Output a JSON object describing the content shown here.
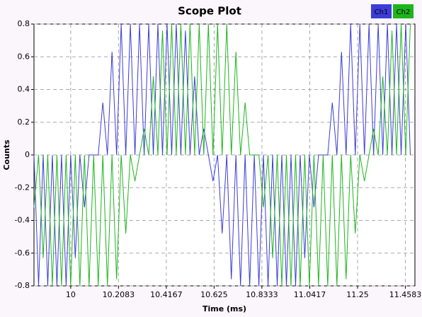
{
  "chart_data": {
    "type": "line",
    "title": "Scope Plot",
    "x_label": "Time (ms)",
    "y_label": "Counts",
    "x": [
      9.84,
      9.86,
      9.88,
      9.9,
      9.92,
      9.94,
      9.96,
      9.98,
      10,
      10.02,
      10.04,
      10.06,
      10.08,
      10.1,
      10.12,
      10.14,
      10.16,
      10.18,
      10.2,
      10.22,
      10.24,
      10.26,
      10.28,
      10.3,
      10.32,
      10.34,
      10.36,
      10.38,
      10.4,
      10.42,
      10.44,
      10.46,
      10.48,
      10.5,
      10.52,
      10.54,
      10.56,
      10.58,
      10.6,
      10.62,
      10.64,
      10.66,
      10.68,
      10.7,
      10.72,
      10.74,
      10.76,
      10.78,
      10.8,
      10.82,
      10.84,
      10.86,
      10.88,
      10.9,
      10.92,
      10.94,
      10.96,
      10.98,
      11,
      11.02,
      11.04,
      11.06,
      11.08,
      11.1,
      11.12,
      11.14,
      11.16,
      11.18,
      11.2,
      11.22,
      11.24,
      11.26,
      11.28,
      11.3,
      11.32,
      11.34,
      11.36,
      11.38,
      11.4,
      11.42,
      11.44,
      11.46,
      11.48
    ],
    "series": [
      {
        "name": "Ch1",
        "color": "#3c3cd8",
        "values": [
          0,
          -0.8,
          0,
          -0.8,
          0,
          -0.8,
          0,
          -0.8,
          0,
          -0.63,
          0,
          -0.32,
          0,
          0,
          0,
          0.32,
          0,
          0.63,
          0,
          0.8,
          0,
          0.8,
          0,
          0.8,
          0,
          0.8,
          0,
          0.8,
          0,
          0.8,
          0,
          0.8,
          0,
          0.76,
          0,
          0.48,
          0,
          0.16,
          0,
          -0.16,
          0,
          -0.48,
          0,
          -0.76,
          0,
          -0.8,
          0,
          -0.8,
          0,
          -0.8,
          0,
          -0.8,
          0,
          -0.8,
          0,
          -0.8,
          0,
          -0.8,
          0,
          -0.63,
          0,
          -0.32,
          0,
          0,
          0,
          0.32,
          0,
          0.63,
          0,
          0.8,
          0,
          0.8,
          0,
          0.8,
          0,
          0.8,
          0,
          0.8,
          0,
          0.8,
          0,
          0.8,
          0
        ]
      },
      {
        "name": "Ch2",
        "color": "#1db51d",
        "values": [
          -0.32,
          0,
          -0.63,
          0,
          -0.8,
          0,
          -0.8,
          0,
          -0.8,
          0,
          -0.8,
          0,
          -0.8,
          0,
          -0.8,
          0,
          -0.8,
          0,
          -0.76,
          0,
          -0.48,
          0,
          -0.16,
          0,
          0.16,
          0,
          0.48,
          0,
          0.76,
          0,
          0.8,
          0,
          0.8,
          0,
          0.8,
          0,
          0.8,
          0,
          0.8,
          0,
          0.8,
          0,
          0.8,
          0,
          0.63,
          0,
          0.32,
          0,
          0,
          0,
          -0.32,
          0,
          -0.63,
          0,
          -0.8,
          0,
          -0.8,
          0,
          -0.8,
          0,
          -0.8,
          0,
          -0.8,
          0,
          -0.8,
          0,
          -0.8,
          0,
          -0.76,
          0,
          -0.48,
          0,
          -0.16,
          0,
          0.16,
          0,
          0.48,
          0,
          0.76,
          0,
          0.8,
          0,
          0.8
        ]
      }
    ],
    "xlim": [
      9.84,
      11.5
    ],
    "ylim": [
      -0.8,
      0.8
    ],
    "xticks": [
      10,
      10.2083,
      10.4167,
      10.625,
      10.8333,
      11.0417,
      11.25,
      11.4583
    ],
    "yticks": [
      -0.8,
      -0.6,
      -0.4,
      -0.2,
      0,
      0.2,
      0.4,
      0.6,
      0.8
    ],
    "grid": true,
    "legend": "top-right"
  }
}
